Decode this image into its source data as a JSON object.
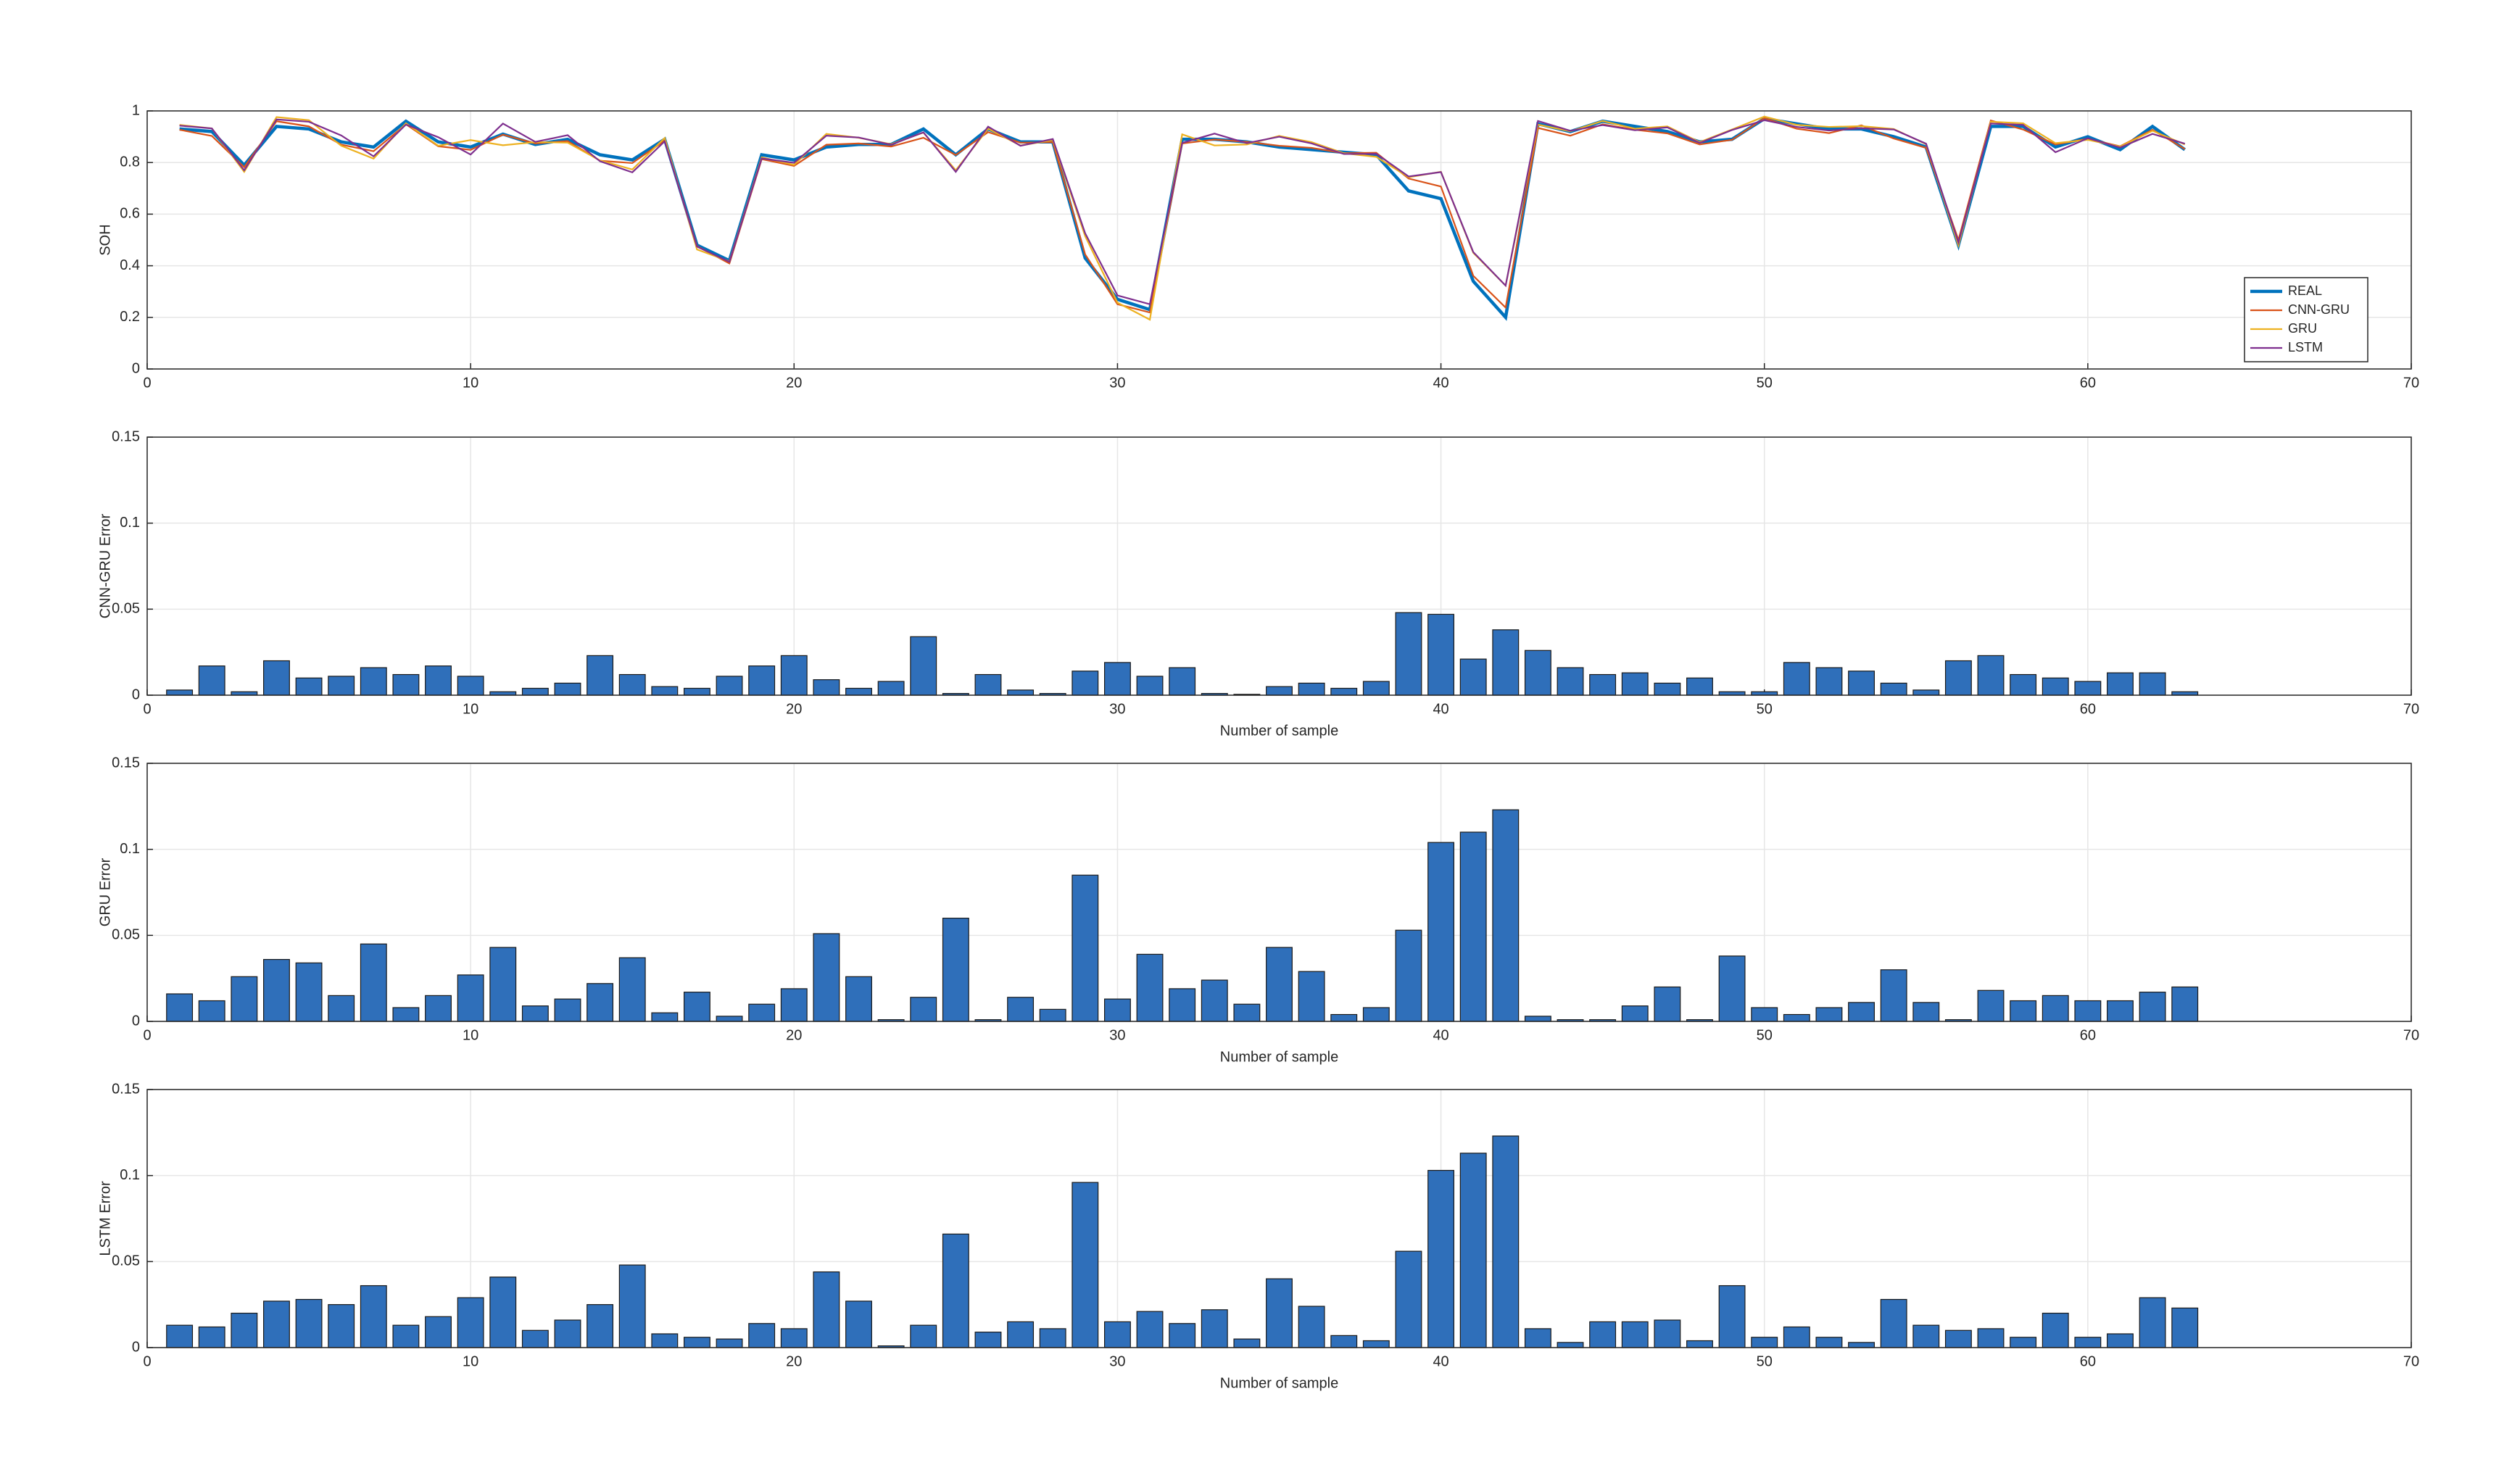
{
  "chart_data": [
    {
      "type": "line",
      "ylabel": "SOH",
      "xlim": [
        0,
        70
      ],
      "xticks": [
        0,
        10,
        20,
        30,
        40,
        50,
        60,
        70
      ],
      "ylim": [
        0,
        1
      ],
      "yticks": [
        0,
        0.2,
        0.4,
        0.6,
        0.8,
        1
      ],
      "grid": true,
      "legend": "lower right",
      "x": [
        1,
        2,
        3,
        4,
        5,
        6,
        7,
        8,
        9,
        10,
        11,
        12,
        13,
        14,
        15,
        16,
        17,
        18,
        19,
        20,
        21,
        22,
        23,
        24,
        25,
        26,
        27,
        28,
        29,
        30,
        31,
        32,
        33,
        34,
        35,
        36,
        37,
        38,
        39,
        40,
        41,
        42,
        43,
        44,
        45,
        46,
        47,
        48,
        49,
        50,
        51,
        52,
        53,
        54,
        55,
        56,
        57,
        58,
        59,
        60,
        61,
        62,
        63
      ],
      "series": [
        {
          "name": "REAL",
          "color": "#0072BD",
          "values": [
            0.93,
            0.92,
            0.79,
            0.94,
            0.93,
            0.88,
            0.86,
            0.96,
            0.88,
            0.86,
            0.91,
            0.87,
            0.89,
            0.83,
            0.81,
            0.89,
            0.48,
            0.42,
            0.83,
            0.81,
            0.86,
            0.87,
            0.87,
            0.93,
            0.83,
            0.93,
            0.88,
            0.88,
            0.43,
            0.27,
            0.23,
            0.89,
            0.89,
            0.88,
            0.86,
            0.85,
            0.84,
            0.83,
            0.69,
            0.66,
            0.34,
            0.2,
            0.95,
            0.92,
            0.96,
            0.94,
            0.92,
            0.88,
            0.89,
            0.97,
            0.95,
            0.93,
            0.93,
            0.9,
            0.86,
            0.48,
            0.94,
            0.94,
            0.86,
            0.9,
            0.85,
            0.94,
            0.85
          ]
        },
        {
          "name": "CNN-GRU",
          "color": "#D95319",
          "values": [
            0.927,
            0.903,
            0.782,
            0.96,
            0.94,
            0.869,
            0.844,
            0.948,
            0.863,
            0.849,
            0.908,
            0.874,
            0.883,
            0.807,
            0.798,
            0.885,
            0.476,
            0.409,
            0.813,
            0.787,
            0.869,
            0.874,
            0.862,
            0.896,
            0.829,
            0.918,
            0.877,
            0.879,
            0.444,
            0.251,
            0.219,
            0.874,
            0.889,
            0.88,
            0.865,
            0.857,
            0.836,
            0.838,
            0.738,
            0.707,
            0.361,
            0.238,
            0.934,
            0.904,
            0.948,
            0.927,
            0.913,
            0.87,
            0.888,
            0.972,
            0.931,
            0.914,
            0.944,
            0.893,
            0.857,
            0.5,
            0.963,
            0.928,
            0.87,
            0.892,
            0.863,
            0.927,
            0.852
          ]
        },
        {
          "name": "GRU",
          "color": "#EDB120",
          "values": [
            0.946,
            0.932,
            0.764,
            0.976,
            0.964,
            0.865,
            0.815,
            0.952,
            0.865,
            0.887,
            0.867,
            0.879,
            0.877,
            0.808,
            0.773,
            0.895,
            0.463,
            0.417,
            0.82,
            0.791,
            0.911,
            0.896,
            0.871,
            0.916,
            0.77,
            0.931,
            0.866,
            0.887,
            0.515,
            0.257,
            0.191,
            0.909,
            0.866,
            0.87,
            0.903,
            0.879,
            0.836,
            0.822,
            0.743,
            0.764,
            0.45,
            0.323,
            0.947,
            0.921,
            0.961,
            0.931,
            0.94,
            0.879,
            0.928,
            0.978,
            0.946,
            0.938,
            0.941,
            0.93,
            0.871,
            0.479,
            0.958,
            0.952,
            0.875,
            0.888,
            0.862,
            0.923,
            0.87
          ]
        },
        {
          "name": "LSTM",
          "color": "#7E2F8E",
          "values": [
            0.943,
            0.932,
            0.77,
            0.967,
            0.958,
            0.905,
            0.824,
            0.947,
            0.898,
            0.831,
            0.951,
            0.88,
            0.906,
            0.805,
            0.762,
            0.882,
            0.474,
            0.415,
            0.816,
            0.799,
            0.904,
            0.897,
            0.869,
            0.917,
            0.764,
            0.939,
            0.865,
            0.891,
            0.526,
            0.285,
            0.251,
            0.876,
            0.912,
            0.875,
            0.9,
            0.874,
            0.833,
            0.834,
            0.746,
            0.763,
            0.453,
            0.323,
            0.961,
            0.923,
            0.945,
            0.925,
            0.936,
            0.876,
            0.926,
            0.964,
            0.938,
            0.924,
            0.933,
            0.928,
            0.873,
            0.49,
            0.951,
            0.946,
            0.84,
            0.894,
            0.858,
            0.911,
            0.873
          ]
        }
      ]
    },
    {
      "type": "bar",
      "ylabel": "CNN-GRU Error",
      "xlabel": "Number of sample",
      "xlim": [
        0,
        70
      ],
      "xticks": [
        0,
        10,
        20,
        30,
        40,
        50,
        60,
        70
      ],
      "ylim": [
        0,
        0.15
      ],
      "yticks": [
        0,
        0.05,
        0.1,
        0.15
      ],
      "grid": true,
      "color": "#2F6FBA",
      "x": [
        1,
        2,
        3,
        4,
        5,
        6,
        7,
        8,
        9,
        10,
        11,
        12,
        13,
        14,
        15,
        16,
        17,
        18,
        19,
        20,
        21,
        22,
        23,
        24,
        25,
        26,
        27,
        28,
        29,
        30,
        31,
        32,
        33,
        34,
        35,
        36,
        37,
        38,
        39,
        40,
        41,
        42,
        43,
        44,
        45,
        46,
        47,
        48,
        49,
        50,
        51,
        52,
        53,
        54,
        55,
        56,
        57,
        58,
        59,
        60,
        61,
        62,
        63
      ],
      "values": [
        0.003,
        0.017,
        0.002,
        0.02,
        0.01,
        0.011,
        0.016,
        0.012,
        0.017,
        0.011,
        0.002,
        0.004,
        0.007,
        0.023,
        0.012,
        0.005,
        0.004,
        0.011,
        0.017,
        0.023,
        0.009,
        0.004,
        0.008,
        0.034,
        0.001,
        0.012,
        0.003,
        0.001,
        0.014,
        0.019,
        0.011,
        0.016,
        0.001,
        0.0005,
        0.005,
        0.007,
        0.004,
        0.008,
        0.048,
        0.047,
        0.021,
        0.038,
        0.026,
        0.016,
        0.012,
        0.013,
        0.007,
        0.01,
        0.002,
        0.002,
        0.019,
        0.016,
        0.014,
        0.007,
        0.003,
        0.02,
        0.023,
        0.012,
        0.01,
        0.008,
        0.013,
        0.013,
        0.002
      ]
    },
    {
      "type": "bar",
      "ylabel": "GRU Error",
      "xlabel": "Number of sample",
      "xlim": [
        0,
        70
      ],
      "xticks": [
        0,
        10,
        20,
        30,
        40,
        50,
        60,
        70
      ],
      "ylim": [
        0,
        0.15
      ],
      "yticks": [
        0,
        0.05,
        0.1,
        0.15
      ],
      "grid": true,
      "color": "#2F6FBA",
      "x": [
        1,
        2,
        3,
        4,
        5,
        6,
        7,
        8,
        9,
        10,
        11,
        12,
        13,
        14,
        15,
        16,
        17,
        18,
        19,
        20,
        21,
        22,
        23,
        24,
        25,
        26,
        27,
        28,
        29,
        30,
        31,
        32,
        33,
        34,
        35,
        36,
        37,
        38,
        39,
        40,
        41,
        42,
        43,
        44,
        45,
        46,
        47,
        48,
        49,
        50,
        51,
        52,
        53,
        54,
        55,
        56,
        57,
        58,
        59,
        60,
        61,
        62,
        63
      ],
      "values": [
        0.016,
        0.012,
        0.026,
        0.036,
        0.034,
        0.015,
        0.045,
        0.008,
        0.015,
        0.027,
        0.043,
        0.009,
        0.013,
        0.022,
        0.037,
        0.005,
        0.017,
        0.003,
        0.01,
        0.019,
        0.051,
        0.026,
        0.001,
        0.014,
        0.06,
        0.001,
        0.014,
        0.007,
        0.085,
        0.013,
        0.039,
        0.019,
        0.024,
        0.01,
        0.043,
        0.029,
        0.004,
        0.008,
        0.053,
        0.104,
        0.11,
        0.123,
        0.003,
        0.001,
        0.001,
        0.009,
        0.02,
        0.001,
        0.038,
        0.008,
        0.004,
        0.008,
        0.011,
        0.03,
        0.011,
        0.001,
        0.018,
        0.012,
        0.015,
        0.012,
        0.012,
        0.017,
        0.02
      ]
    },
    {
      "type": "bar",
      "ylabel": "LSTM Error",
      "xlabel": "Number of sample",
      "xlim": [
        0,
        70
      ],
      "xticks": [
        0,
        10,
        20,
        30,
        40,
        50,
        60,
        70
      ],
      "ylim": [
        0,
        0.15
      ],
      "yticks": [
        0,
        0.05,
        0.1,
        0.15
      ],
      "grid": true,
      "color": "#2F6FBA",
      "x": [
        1,
        2,
        3,
        4,
        5,
        6,
        7,
        8,
        9,
        10,
        11,
        12,
        13,
        14,
        15,
        16,
        17,
        18,
        19,
        20,
        21,
        22,
        23,
        24,
        25,
        26,
        27,
        28,
        29,
        30,
        31,
        32,
        33,
        34,
        35,
        36,
        37,
        38,
        39,
        40,
        41,
        42,
        43,
        44,
        45,
        46,
        47,
        48,
        49,
        50,
        51,
        52,
        53,
        54,
        55,
        56,
        57,
        58,
        59,
        60,
        61,
        62,
        63
      ],
      "values": [
        0.013,
        0.012,
        0.02,
        0.027,
        0.028,
        0.025,
        0.036,
        0.013,
        0.018,
        0.029,
        0.041,
        0.01,
        0.016,
        0.025,
        0.048,
        0.008,
        0.006,
        0.005,
        0.014,
        0.011,
        0.044,
        0.027,
        0.001,
        0.013,
        0.066,
        0.009,
        0.015,
        0.011,
        0.096,
        0.015,
        0.021,
        0.014,
        0.022,
        0.005,
        0.04,
        0.024,
        0.007,
        0.004,
        0.056,
        0.103,
        0.113,
        0.123,
        0.011,
        0.003,
        0.015,
        0.015,
        0.016,
        0.004,
        0.036,
        0.006,
        0.012,
        0.006,
        0.003,
        0.028,
        0.013,
        0.01,
        0.011,
        0.006,
        0.02,
        0.006,
        0.008,
        0.029,
        0.023
      ]
    }
  ]
}
